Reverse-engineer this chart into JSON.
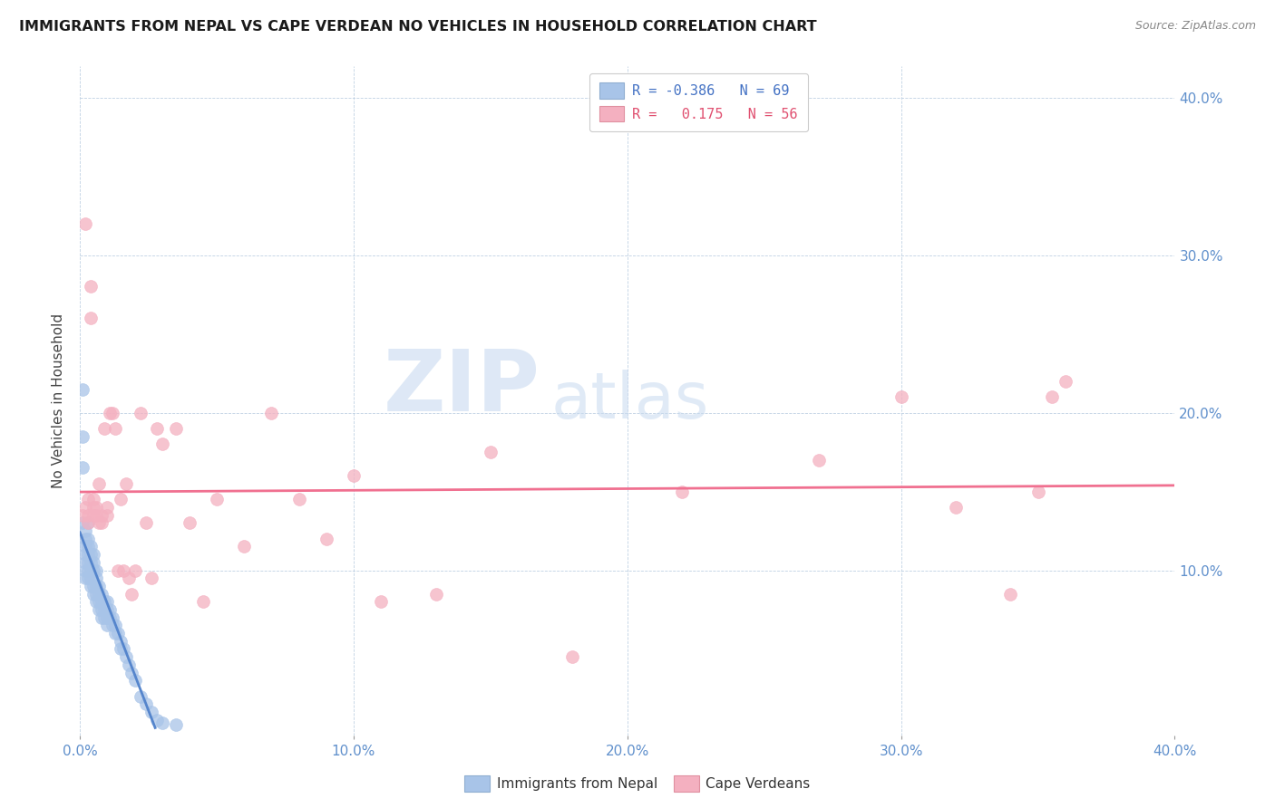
{
  "title": "IMMIGRANTS FROM NEPAL VS CAPE VERDEAN NO VEHICLES IN HOUSEHOLD CORRELATION CHART",
  "source": "Source: ZipAtlas.com",
  "ylabel": "No Vehicles in Household",
  "xlim": [
    0.0,
    0.4
  ],
  "ylim": [
    -0.005,
    0.42
  ],
  "xtick_labels": [
    "0.0%",
    "10.0%",
    "20.0%",
    "30.0%",
    "40.0%"
  ],
  "xtick_positions": [
    0.0,
    0.1,
    0.2,
    0.3,
    0.4
  ],
  "ytick_right_labels": [
    "10.0%",
    "20.0%",
    "30.0%",
    "40.0%"
  ],
  "ytick_right_positions": [
    0.1,
    0.2,
    0.3,
    0.4
  ],
  "legend_entries_labels": [
    "R = -0.386   N = 69",
    "R =   0.175   N = 56"
  ],
  "legend_entries_colors": [
    "#a8c4e8",
    "#f4b0c0"
  ],
  "legend_bottom": [
    "Immigrants from Nepal",
    "Cape Verdeans"
  ],
  "nepal_color": "#a8c4e8",
  "cape_color": "#f4b0c0",
  "nepal_line_color": "#5585cc",
  "cape_line_color": "#f07090",
  "watermark_zip": "ZIP",
  "watermark_atlas": "atlas",
  "nepal_x": [
    0.001,
    0.001,
    0.001,
    0.001,
    0.002,
    0.002,
    0.002,
    0.002,
    0.002,
    0.002,
    0.002,
    0.003,
    0.003,
    0.003,
    0.003,
    0.003,
    0.003,
    0.003,
    0.004,
    0.004,
    0.004,
    0.004,
    0.004,
    0.004,
    0.005,
    0.005,
    0.005,
    0.005,
    0.005,
    0.006,
    0.006,
    0.006,
    0.006,
    0.006,
    0.007,
    0.007,
    0.007,
    0.007,
    0.008,
    0.008,
    0.008,
    0.008,
    0.009,
    0.009,
    0.009,
    0.01,
    0.01,
    0.01,
    0.01,
    0.011,
    0.011,
    0.012,
    0.012,
    0.013,
    0.013,
    0.014,
    0.015,
    0.015,
    0.016,
    0.017,
    0.018,
    0.019,
    0.02,
    0.022,
    0.024,
    0.026,
    0.028,
    0.03,
    0.035
  ],
  "nepal_y": [
    0.215,
    0.185,
    0.165,
    0.13,
    0.125,
    0.12,
    0.115,
    0.11,
    0.105,
    0.1,
    0.095,
    0.13,
    0.12,
    0.115,
    0.11,
    0.105,
    0.1,
    0.095,
    0.115,
    0.11,
    0.105,
    0.1,
    0.095,
    0.09,
    0.11,
    0.105,
    0.1,
    0.09,
    0.085,
    0.1,
    0.095,
    0.09,
    0.085,
    0.08,
    0.09,
    0.085,
    0.08,
    0.075,
    0.085,
    0.08,
    0.075,
    0.07,
    0.08,
    0.075,
    0.07,
    0.08,
    0.075,
    0.07,
    0.065,
    0.075,
    0.07,
    0.07,
    0.065,
    0.065,
    0.06,
    0.06,
    0.055,
    0.05,
    0.05,
    0.045,
    0.04,
    0.035,
    0.03,
    0.02,
    0.015,
    0.01,
    0.005,
    0.003,
    0.002
  ],
  "cape_x": [
    0.001,
    0.002,
    0.002,
    0.003,
    0.003,
    0.003,
    0.004,
    0.004,
    0.005,
    0.005,
    0.005,
    0.006,
    0.006,
    0.007,
    0.007,
    0.008,
    0.008,
    0.009,
    0.01,
    0.01,
    0.011,
    0.012,
    0.013,
    0.014,
    0.015,
    0.016,
    0.017,
    0.018,
    0.019,
    0.02,
    0.022,
    0.024,
    0.026,
    0.028,
    0.03,
    0.035,
    0.04,
    0.045,
    0.05,
    0.06,
    0.07,
    0.08,
    0.09,
    0.1,
    0.11,
    0.13,
    0.15,
    0.18,
    0.22,
    0.27,
    0.3,
    0.32,
    0.34,
    0.35,
    0.355,
    0.36
  ],
  "cape_y": [
    0.135,
    0.32,
    0.14,
    0.135,
    0.13,
    0.145,
    0.28,
    0.26,
    0.145,
    0.14,
    0.135,
    0.135,
    0.14,
    0.155,
    0.13,
    0.13,
    0.135,
    0.19,
    0.135,
    0.14,
    0.2,
    0.2,
    0.19,
    0.1,
    0.145,
    0.1,
    0.155,
    0.095,
    0.085,
    0.1,
    0.2,
    0.13,
    0.095,
    0.19,
    0.18,
    0.19,
    0.13,
    0.08,
    0.145,
    0.115,
    0.2,
    0.145,
    0.12,
    0.16,
    0.08,
    0.085,
    0.175,
    0.045,
    0.15,
    0.17,
    0.21,
    0.14,
    0.085,
    0.15,
    0.21,
    0.22
  ]
}
